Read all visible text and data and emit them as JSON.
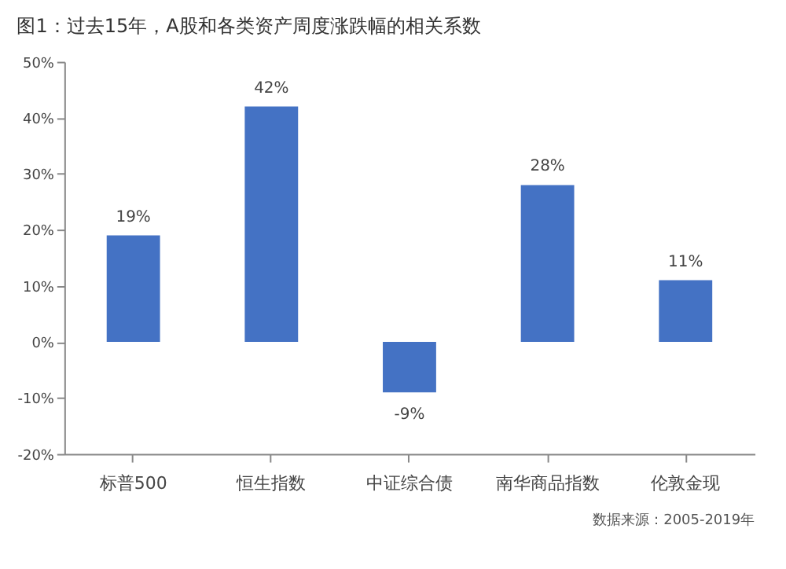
{
  "chart_data": {
    "type": "bar",
    "title": "图1：过去15年，A股和各类资产周度涨跌幅的相关系数",
    "categories": [
      "标普500",
      "恒生指数",
      "中证综合债",
      "南华商品指数",
      "伦敦金现"
    ],
    "values": [
      19,
      42,
      -9,
      28,
      11
    ],
    "color": "#4472c4",
    "value_labels": [
      "19%",
      "42%",
      "-9%",
      "28%",
      "11%"
    ],
    "ylim": [
      -20,
      50
    ],
    "yticks": [
      {
        "value": -20,
        "label": "-20%"
      },
      {
        "value": -10,
        "label": "-10%"
      },
      {
        "value": 0,
        "label": "0%"
      },
      {
        "value": 10,
        "label": "10%"
      },
      {
        "value": 20,
        "label": "20%"
      },
      {
        "value": 30,
        "label": "30%"
      },
      {
        "value": 40,
        "label": "40%"
      },
      {
        "value": 50,
        "label": "50%"
      }
    ],
    "grid": false,
    "annotations": [
      "数据来源：2005-2019年"
    ]
  }
}
